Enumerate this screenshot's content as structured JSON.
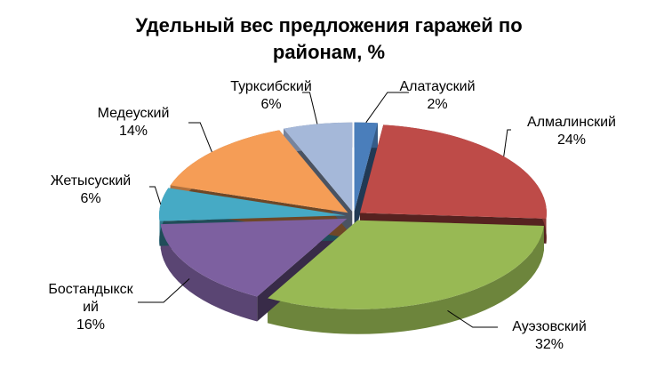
{
  "chart_data": {
    "type": "pie",
    "title": "Удельный вес предложения гаражей по районам, %",
    "categories": [
      "Алатауский",
      "Алмалинский",
      "Ауэзовский",
      "Бостандыкский",
      "Жетысуский",
      "Медеуский",
      "Турксибский"
    ],
    "values": [
      2,
      24,
      32,
      16,
      6,
      14,
      6
    ],
    "value_labels": [
      "2%",
      "24%",
      "32%",
      "16%",
      "6%",
      "14%",
      "6%"
    ],
    "colors": [
      "#4a7ebb",
      "#be4b48",
      "#98b954",
      "#7d60a0",
      "#46aac5",
      "#f59d56",
      "#a5b8d9"
    ]
  }
}
